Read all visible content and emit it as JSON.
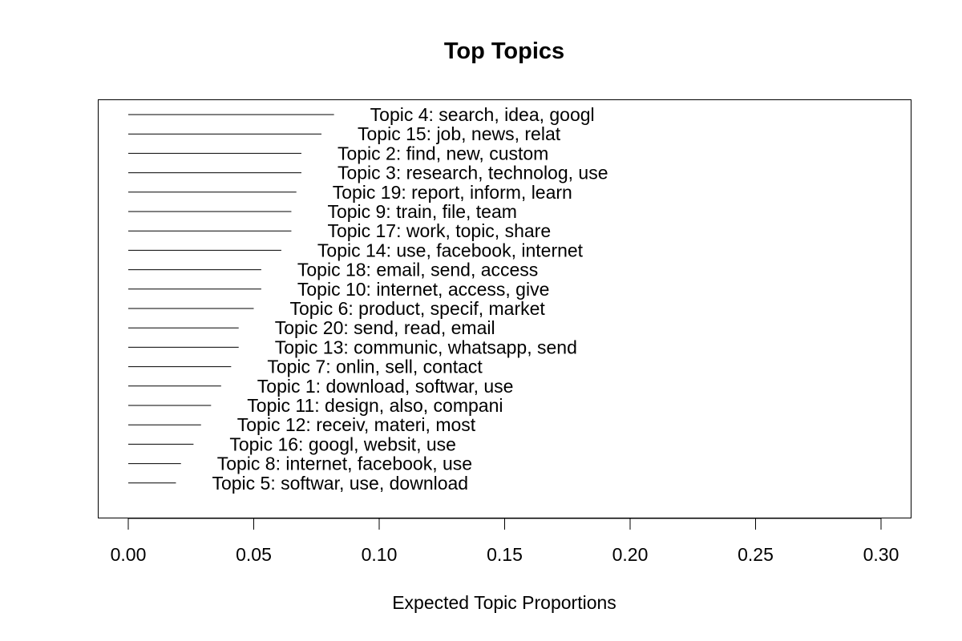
{
  "chart_data": {
    "type": "bar",
    "orientation": "horizontal",
    "title": "Top Topics",
    "xlabel": "Expected Topic Proportions",
    "ylabel": "",
    "xlim": [
      0,
      0.3
    ],
    "xticks": [
      0.0,
      0.05,
      0.1,
      0.15,
      0.2,
      0.25,
      0.3
    ],
    "xtick_labels": [
      "0.00",
      "0.05",
      "0.10",
      "0.15",
      "0.20",
      "0.25",
      "0.30"
    ],
    "grid": false,
    "bars": [
      {
        "label": "Topic 4: search, idea, googl",
        "value": 0.082
      },
      {
        "label": "Topic 15: job, news, relat",
        "value": 0.077
      },
      {
        "label": "Topic 2: find, new, custom",
        "value": 0.069
      },
      {
        "label": "Topic 3: research, technolog, use",
        "value": 0.069
      },
      {
        "label": "Topic 19: report, inform, learn",
        "value": 0.067
      },
      {
        "label": "Topic 9: train, file, team",
        "value": 0.065
      },
      {
        "label": "Topic 17: work, topic, share",
        "value": 0.065
      },
      {
        "label": "Topic 14: use, facebook, internet",
        "value": 0.061
      },
      {
        "label": "Topic 18: email, send, access",
        "value": 0.053
      },
      {
        "label": "Topic 10: internet, access, give",
        "value": 0.053
      },
      {
        "label": "Topic 6: product, specif, market",
        "value": 0.05
      },
      {
        "label": "Topic 20: send, read, email",
        "value": 0.044
      },
      {
        "label": "Topic 13: communic, whatsapp, send",
        "value": 0.044
      },
      {
        "label": "Topic 7: onlin, sell, contact",
        "value": 0.041
      },
      {
        "label": "Topic 1: download, softwar, use",
        "value": 0.037
      },
      {
        "label": "Topic 11: design, also, compani",
        "value": 0.033
      },
      {
        "label": "Topic 12: receiv, materi, most",
        "value": 0.029
      },
      {
        "label": "Topic 16: googl, websit, use",
        "value": 0.026
      },
      {
        "label": "Topic 8: internet, facebook, use",
        "value": 0.021
      },
      {
        "label": "Topic 5: softwar, use, download",
        "value": 0.019
      }
    ]
  }
}
